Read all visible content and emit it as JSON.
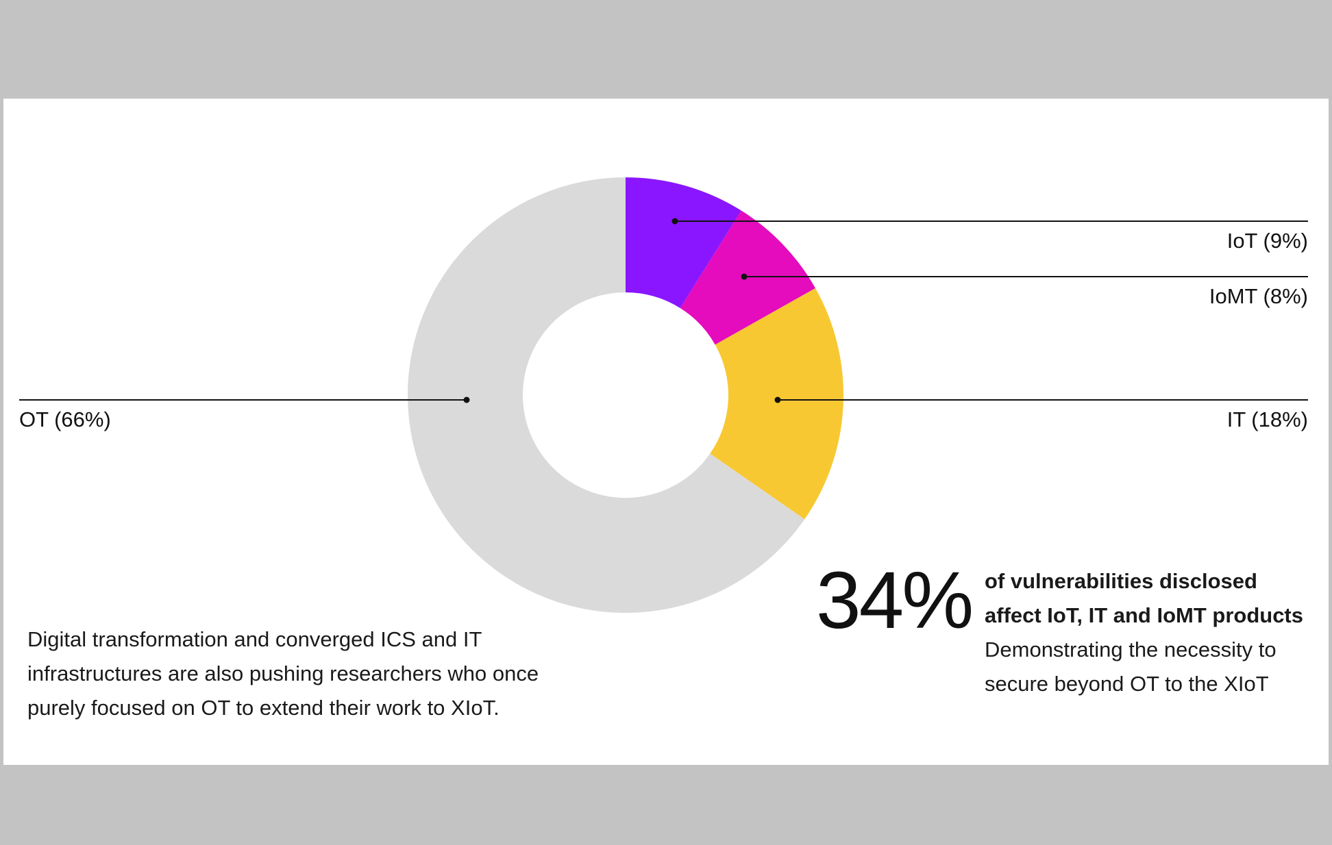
{
  "chart_data": {
    "type": "pie",
    "variant": "donut",
    "slices": [
      {
        "label": "IoT (9%)",
        "value": 9,
        "color": "#8a16ff"
      },
      {
        "label": "IoMT (8%)",
        "value": 8,
        "color": "#e40cbd"
      },
      {
        "label": "IT (18%)",
        "value": 18,
        "color": "#f8c832"
      },
      {
        "label": "OT (66%)",
        "value": 66,
        "color": "#dadada"
      }
    ]
  },
  "description": {
    "lines": [
      "Digital transformation and converged ICS and IT",
      "infrastructures are also pushing researchers who once",
      "purely focused on OT to extend their work to XIoT."
    ]
  },
  "stat": {
    "value": "34%",
    "bold_lines": [
      "of vulnerabilities disclosed",
      "affect IoT, IT and IoMT products"
    ],
    "lines": [
      "Demonstrating the necessity to",
      "secure beyond OT to the XIoT"
    ]
  }
}
